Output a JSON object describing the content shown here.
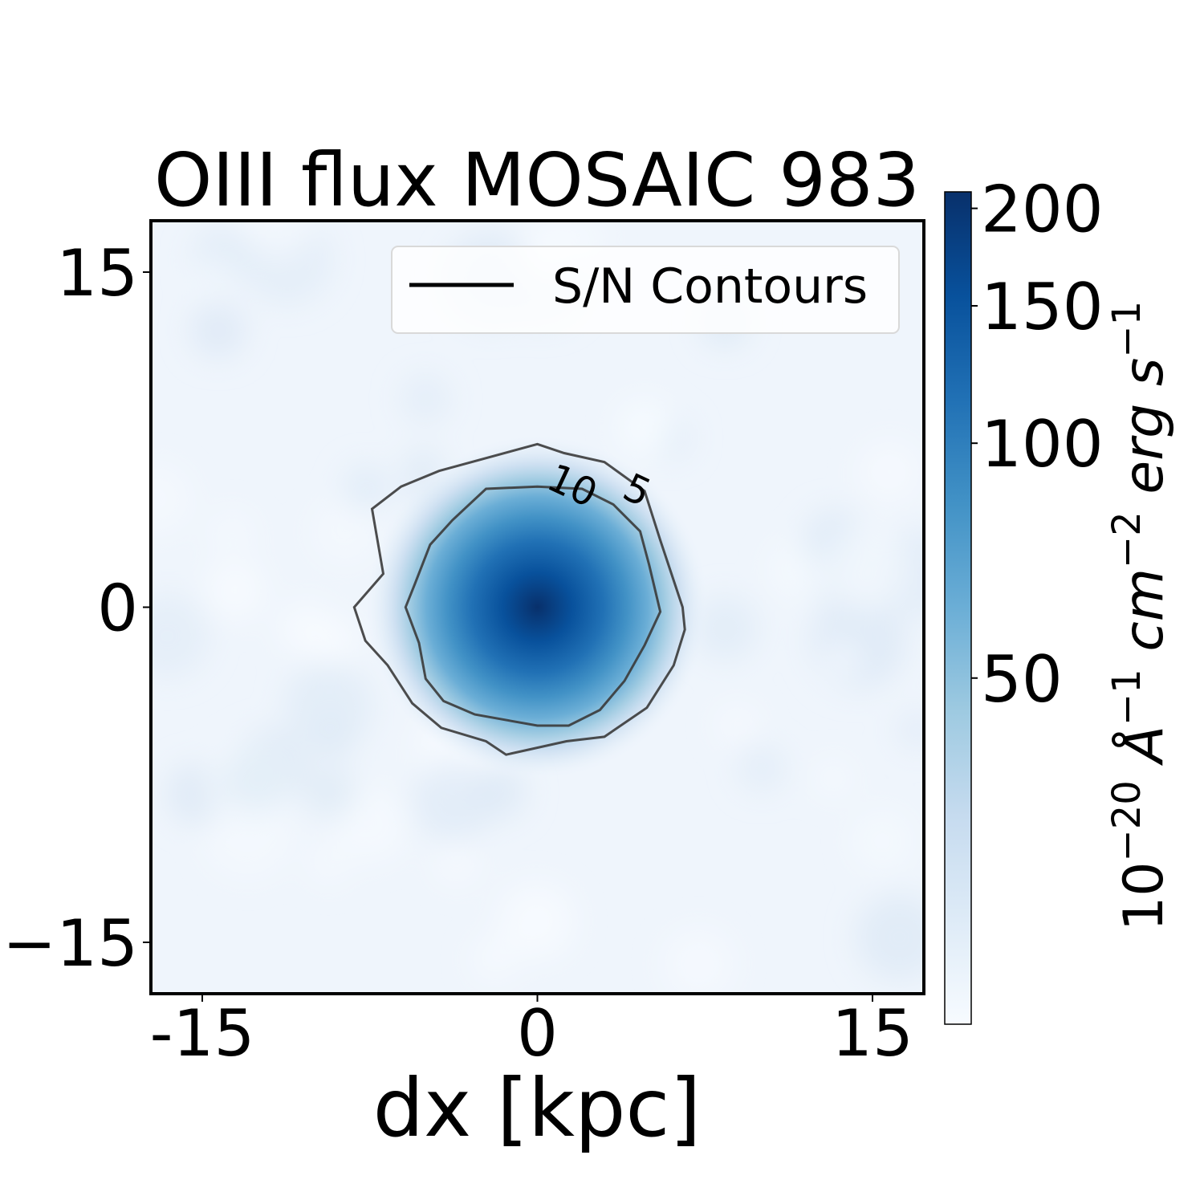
{
  "chart_data": {
    "type": "heatmap",
    "title": "OIII flux MOSAIC 983",
    "xlabel": "dx [kpc]",
    "ylabel": "",
    "xlim": [
      -17.3,
      17.3
    ],
    "ylim": [
      -17.3,
      17.3
    ],
    "x_ticks": [
      -15,
      0,
      15
    ],
    "x_tick_labels": [
      "-15",
      "0",
      "15"
    ],
    "y_ticks": [
      15,
      0,
      -15
    ],
    "y_tick_labels": [
      "15",
      "0",
      "−15"
    ],
    "legend": {
      "label": "S/N Contours",
      "placement": "top-right"
    },
    "colormap": "Blues",
    "colorbar": {
      "label_base": "10",
      "label_exp1": "−20",
      "label_unit1": " Å",
      "label_exp2": "−1",
      "label_unit2": " cm",
      "label_exp3": "−2",
      "label_unit3": " erg s",
      "label_exp4": "−1",
      "scale": "log",
      "range": [
        18,
        210
      ],
      "ticks": [
        200,
        150,
        100,
        50
      ],
      "tick_labels": [
        "200",
        "150",
        "100",
        "50"
      ]
    },
    "source": {
      "x": 0,
      "y": 0,
      "peak": 200,
      "sigma_kpc": 3.6,
      "background": 20
    },
    "contours": [
      {
        "level": 5,
        "label": "5",
        "points": [
          [
            0,
            7.3
          ],
          [
            -4.4,
            6.1
          ],
          [
            -6.1,
            5.4
          ],
          [
            -7.4,
            4.4
          ],
          [
            -6.9,
            1.5
          ],
          [
            -8.2,
            0
          ],
          [
            -7.7,
            -1.5
          ],
          [
            -6.7,
            -2.6
          ],
          [
            -5.6,
            -4.3
          ],
          [
            -4.3,
            -5.4
          ],
          [
            -2.3,
            -6.0
          ],
          [
            -1.4,
            -6.6
          ],
          [
            1.3,
            -6.0
          ],
          [
            3.0,
            -5.8
          ],
          [
            4.9,
            -4.5
          ],
          [
            6.1,
            -2.6
          ],
          [
            6.6,
            -1.0
          ],
          [
            6.5,
            0
          ],
          [
            5.5,
            3.0
          ],
          [
            4.8,
            5.2
          ],
          [
            3.0,
            6.5
          ],
          [
            1.2,
            6.9
          ]
        ]
      },
      {
        "level": 10,
        "label": "10",
        "points": [
          [
            0,
            5.4
          ],
          [
            -2.3,
            5.3
          ],
          [
            -3.8,
            3.9
          ],
          [
            -4.8,
            2.8
          ],
          [
            -5.5,
            1.0
          ],
          [
            -5.9,
            0
          ],
          [
            -5.3,
            -1.6
          ],
          [
            -5.0,
            -3.2
          ],
          [
            -4.2,
            -4.2
          ],
          [
            -2.8,
            -4.8
          ],
          [
            0,
            -5.3
          ],
          [
            1.4,
            -5.3
          ],
          [
            2.8,
            -4.6
          ],
          [
            3.9,
            -3.3
          ],
          [
            4.8,
            -1.7
          ],
          [
            5.5,
            -0.2
          ],
          [
            5.0,
            1.9
          ],
          [
            4.6,
            3.4
          ],
          [
            3.4,
            4.6
          ],
          [
            2.0,
            5.3
          ]
        ]
      }
    ],
    "contour_labels": [
      {
        "text": "10",
        "x": 1.5,
        "y": 5.3
      },
      {
        "text": "5",
        "x": 4.4,
        "y": 5.1
      }
    ]
  }
}
